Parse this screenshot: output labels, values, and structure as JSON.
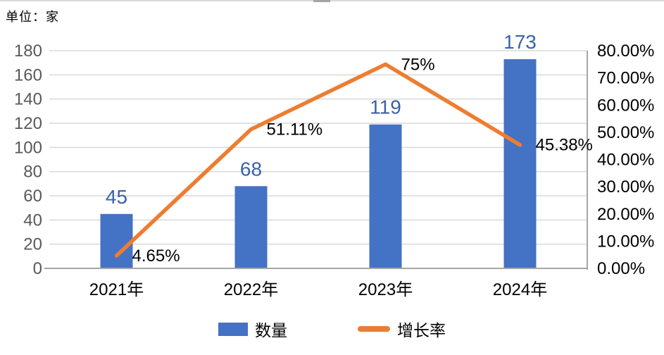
{
  "header": {
    "unit_label": "单位：家"
  },
  "colors": {
    "bar": "#4472C4",
    "line": "#ED7D31",
    "gridline": "#D9D9D9",
    "axis_line": "#A6A6A6",
    "left_tick": "#595959",
    "right_tick": "#000000",
    "category_label": "#000000",
    "bar_label": "#3A62A8",
    "line_label": "#000000",
    "background": "#FFFFFF"
  },
  "chart_data": {
    "type": "combo-bar-line",
    "categories": [
      "2021年",
      "2022年",
      "2023年",
      "2024年"
    ],
    "series": [
      {
        "name": "数量",
        "type": "bar",
        "axis": "left",
        "color": "#4472C4",
        "values": [
          45,
          68,
          119,
          173
        ],
        "labels": [
          "45",
          "68",
          "119",
          "173"
        ]
      },
      {
        "name": "增长率",
        "type": "line",
        "axis": "right",
        "color": "#ED7D31",
        "values": [
          4.65,
          51.11,
          75,
          45.38
        ],
        "labels": [
          "4.65%",
          "51.11%",
          "75%",
          "45.38%"
        ]
      }
    ],
    "left_axis": {
      "min": 0,
      "max": 180,
      "step": 20,
      "tick_labels": [
        "0",
        "20",
        "40",
        "60",
        "80",
        "100",
        "120",
        "140",
        "160",
        "180"
      ]
    },
    "right_axis": {
      "min": 0,
      "max": 80,
      "step": 10,
      "tick_labels": [
        "0.00%",
        "10.00%",
        "20.00%",
        "30.00%",
        "40.00%",
        "50.00%",
        "60.00%",
        "70.00%",
        "80.00%"
      ]
    },
    "grid": true,
    "legend_position": "bottom"
  }
}
